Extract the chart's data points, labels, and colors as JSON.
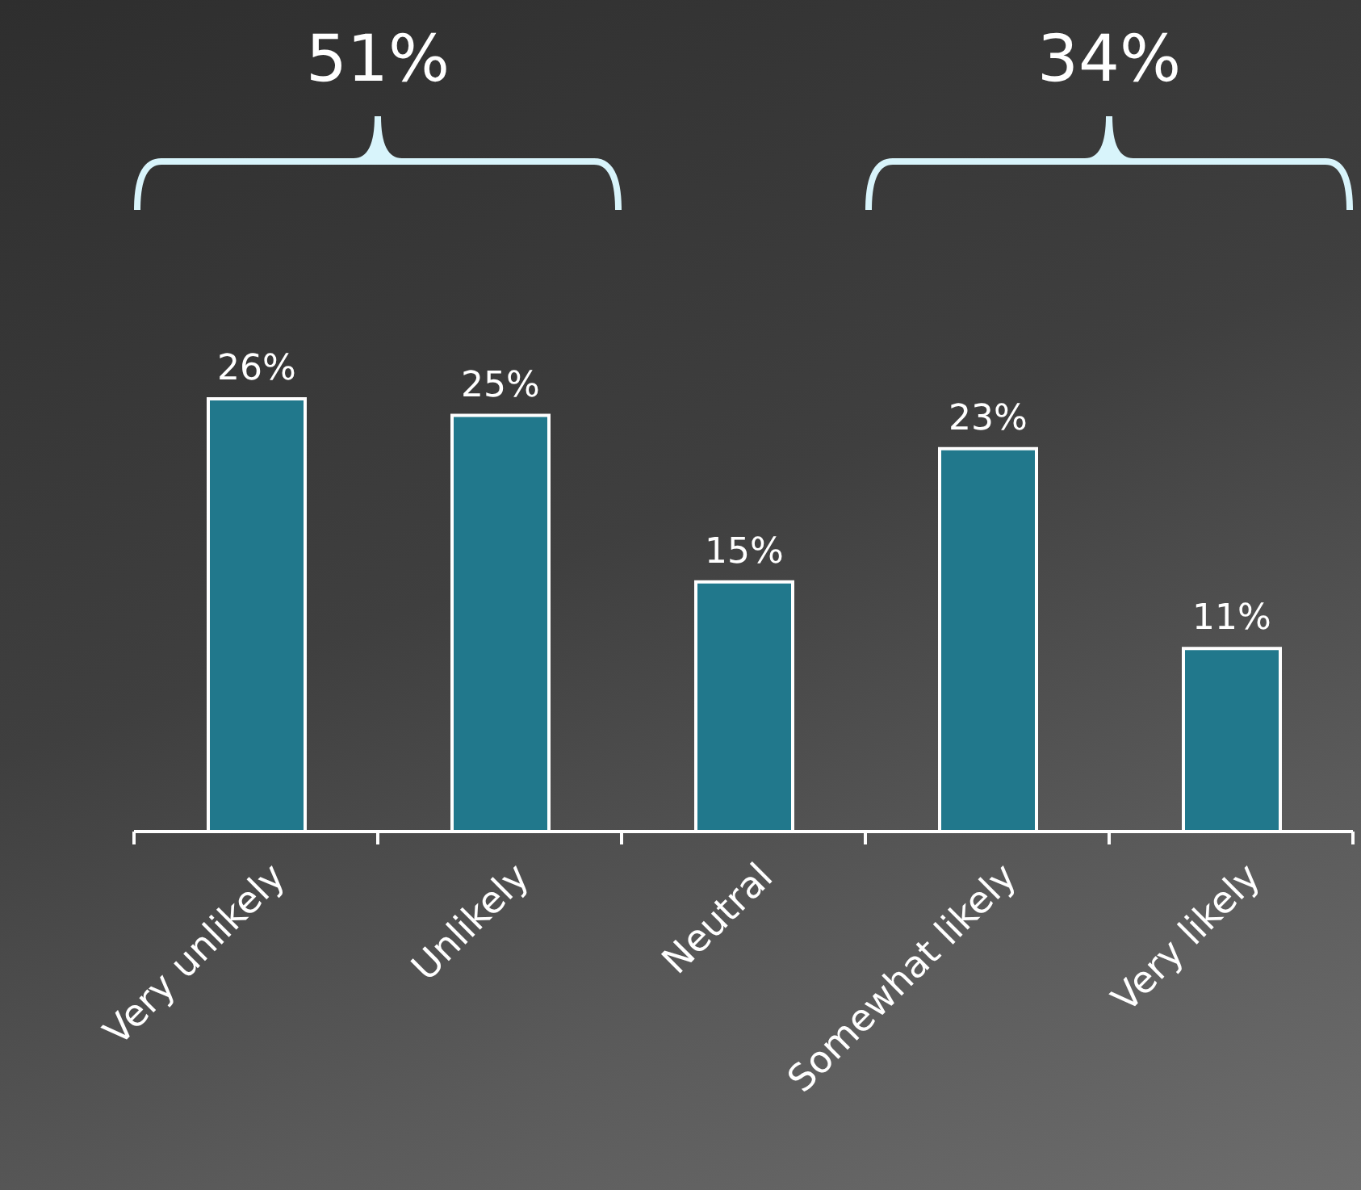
{
  "chart_data": {
    "type": "bar",
    "categories": [
      "Very unlikely",
      "Unlikely",
      "Neutral",
      "Somewhat likely",
      "Very likely"
    ],
    "values": [
      26,
      25,
      15,
      23,
      11
    ],
    "value_labels": [
      "26%",
      "25%",
      "15%",
      "23%",
      "11%"
    ],
    "color": "#21788c",
    "annotations": [
      "51%",
      "34%"
    ],
    "grid": false,
    "legend": false
  }
}
